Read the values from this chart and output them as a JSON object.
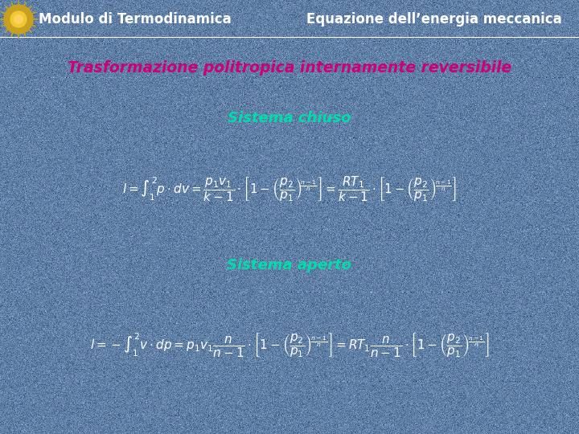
{
  "header_bg_color": "#5b7299",
  "header_text_left": "Modulo di Termodinamica",
  "header_text_right": "Equazione dell’energia meccanica",
  "header_text_color": "white",
  "title_text": "Trasformazione politropica internamente reversibile",
  "title_color": "#cc0077",
  "section1_text": "Sistema chiuso",
  "section2_text": "Sistema aperto",
  "section_color": "#00ddaa",
  "eq_color": "white",
  "bg_base": [
    0.38,
    0.5,
    0.65
  ],
  "figsize": [
    7.2,
    5.4
  ],
  "dpi": 100
}
